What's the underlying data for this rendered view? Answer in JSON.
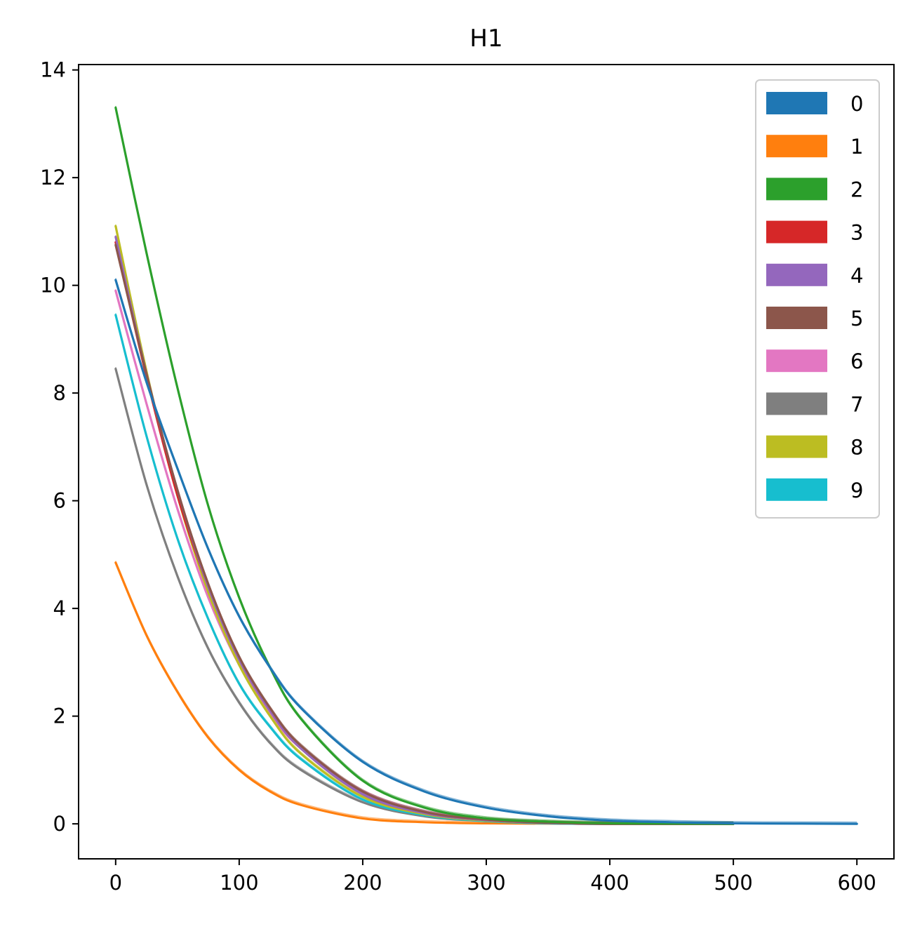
{
  "chart_data": {
    "type": "line",
    "title": "H1",
    "xlabel": "",
    "ylabel": "",
    "xlim": [
      -30,
      630
    ],
    "ylim": [
      -0.65,
      14.1
    ],
    "xticks": [
      0,
      100,
      200,
      300,
      400,
      500,
      600
    ],
    "yticks": [
      0,
      2,
      4,
      6,
      8,
      10,
      12,
      14
    ],
    "grid": false,
    "legend": {
      "position": "top-right",
      "style": "filled-patches"
    },
    "series": [
      {
        "name": "0",
        "color": "#1f77b4",
        "x": [
          0,
          25,
          50,
          75,
          100,
          125,
          150,
          200,
          250,
          300,
          350,
          400,
          450,
          500,
          550,
          600
        ],
        "y": [
          10.1,
          8.2,
          6.6,
          5.1,
          3.85,
          2.9,
          2.15,
          1.15,
          0.6,
          0.3,
          0.14,
          0.06,
          0.03,
          0.01,
          0.005,
          0.0
        ]
      },
      {
        "name": "1",
        "color": "#ff7f0e",
        "x": [
          0,
          25,
          50,
          75,
          100,
          125,
          150,
          200,
          250,
          300,
          400,
          500
        ],
        "y": [
          4.85,
          3.5,
          2.45,
          1.6,
          1.0,
          0.6,
          0.35,
          0.1,
          0.03,
          0.01,
          0.0,
          0.0
        ]
      },
      {
        "name": "2",
        "color": "#2ca02c",
        "x": [
          0,
          25,
          50,
          75,
          100,
          125,
          150,
          200,
          250,
          300,
          350,
          400,
          450,
          500
        ],
        "y": [
          13.3,
          10.6,
          8.1,
          5.9,
          4.2,
          2.9,
          1.95,
          0.8,
          0.3,
          0.1,
          0.04,
          0.01,
          0.005,
          0.0
        ]
      },
      {
        "name": "3",
        "color": "#d62728",
        "x": [
          0,
          25,
          50,
          75,
          100,
          125,
          150,
          200,
          250,
          300,
          350,
          400,
          500
        ],
        "y": [
          10.8,
          8.3,
          6.1,
          4.4,
          3.05,
          2.1,
          1.4,
          0.55,
          0.2,
          0.07,
          0.02,
          0.0,
          0.0
        ]
      },
      {
        "name": "4",
        "color": "#9467bd",
        "x": [
          0,
          25,
          50,
          75,
          100,
          125,
          150,
          200,
          250,
          300,
          350,
          400,
          500
        ],
        "y": [
          10.9,
          8.35,
          6.2,
          4.4,
          3.05,
          2.1,
          1.4,
          0.55,
          0.2,
          0.07,
          0.02,
          0.0,
          0.0
        ]
      },
      {
        "name": "5",
        "color": "#8c564b",
        "x": [
          0,
          25,
          50,
          75,
          100,
          125,
          150,
          200,
          250,
          300,
          350,
          400,
          500
        ],
        "y": [
          10.75,
          8.35,
          6.2,
          4.45,
          3.1,
          2.15,
          1.45,
          0.6,
          0.22,
          0.08,
          0.02,
          0.0,
          0.0
        ]
      },
      {
        "name": "6",
        "color": "#e377c2",
        "x": [
          0,
          25,
          50,
          75,
          100,
          125,
          150,
          200,
          250,
          300,
          350,
          400,
          500
        ],
        "y": [
          9.9,
          7.8,
          5.85,
          4.2,
          2.95,
          2.05,
          1.4,
          0.6,
          0.22,
          0.08,
          0.02,
          0.0,
          0.0
        ]
      },
      {
        "name": "7",
        "color": "#7f7f7f",
        "x": [
          0,
          25,
          50,
          75,
          100,
          125,
          150,
          200,
          250,
          300,
          350,
          400,
          500
        ],
        "y": [
          8.45,
          6.3,
          4.6,
          3.25,
          2.25,
          1.5,
          1.0,
          0.4,
          0.14,
          0.05,
          0.01,
          0.0,
          0.0
        ]
      },
      {
        "name": "8",
        "color": "#bcbd22",
        "x": [
          0,
          25,
          50,
          75,
          100,
          125,
          150,
          200,
          250,
          300,
          350,
          400,
          500
        ],
        "y": [
          11.1,
          8.4,
          6.1,
          4.3,
          2.95,
          2.0,
          1.3,
          0.5,
          0.18,
          0.06,
          0.02,
          0.0,
          0.0
        ]
      },
      {
        "name": "9",
        "color": "#17becf",
        "x": [
          0,
          25,
          50,
          75,
          100,
          125,
          150,
          200,
          250,
          300,
          350,
          400,
          500
        ],
        "y": [
          9.45,
          7.2,
          5.3,
          3.8,
          2.6,
          1.8,
          1.2,
          0.45,
          0.16,
          0.05,
          0.01,
          0.0,
          0.0
        ]
      }
    ]
  }
}
